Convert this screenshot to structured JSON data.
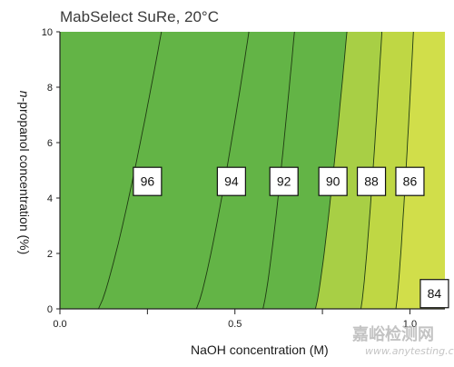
{
  "chart_data": {
    "type": "contour",
    "title": "MabSelect SuRe, 20°C",
    "xlabel": "NaOH  concentration (M)",
    "ylabel_italic": "n",
    "ylabel_rest": "-propanol concentration (%)",
    "xlim": [
      0.0,
      1.1
    ],
    "ylim": [
      0,
      10
    ],
    "x_ticks": [
      0.0,
      0.5,
      1.0
    ],
    "x_tick_labels": [
      "0.0",
      "0.5",
      "1.0"
    ],
    "y_ticks": [
      0,
      2,
      4,
      6,
      8,
      10
    ],
    "y_tick_labels": [
      "0",
      "2",
      "4",
      "6",
      "8",
      "10"
    ],
    "contour_levels": [
      {
        "label": "96",
        "x_at_y0": 0.11,
        "x_at_y10": 0.29,
        "label_x": 0.25,
        "label_y": 4.6
      },
      {
        "label": "94",
        "x_at_y0": 0.39,
        "x_at_y10": 0.54,
        "label_x": 0.49,
        "label_y": 4.6
      },
      {
        "label": "92",
        "x_at_y0": 0.58,
        "x_at_y10": 0.67,
        "label_x": 0.64,
        "label_y": 4.6
      },
      {
        "label": "90",
        "x_at_y0": 0.73,
        "x_at_y10": 0.82,
        "label_x": 0.78,
        "label_y": 4.6
      },
      {
        "label": "88",
        "x_at_y0": 0.86,
        "x_at_y10": 0.92,
        "label_x": 0.89,
        "label_y": 4.6
      },
      {
        "label": "86",
        "x_at_y0": 0.96,
        "x_at_y10": 1.01,
        "label_x": 1.0,
        "label_y": 4.6
      },
      {
        "label": "84",
        "x_at_y0": null,
        "x_at_y10": null,
        "label_x": 1.07,
        "label_y": 0.55
      }
    ],
    "color_regions": [
      {
        "from_level": 100,
        "to_level": 90,
        "color": "#63b446"
      },
      {
        "from_level": 90,
        "to_level": 88,
        "color": "#a8cf45"
      },
      {
        "from_level": 88,
        "to_level": 86,
        "color": "#bfd744"
      },
      {
        "from_level": 86,
        "to_level": 84,
        "color": "#d1de4a"
      }
    ]
  },
  "watermark": {
    "text": "嘉峪检测网",
    "url": "www.anytesting.com"
  }
}
